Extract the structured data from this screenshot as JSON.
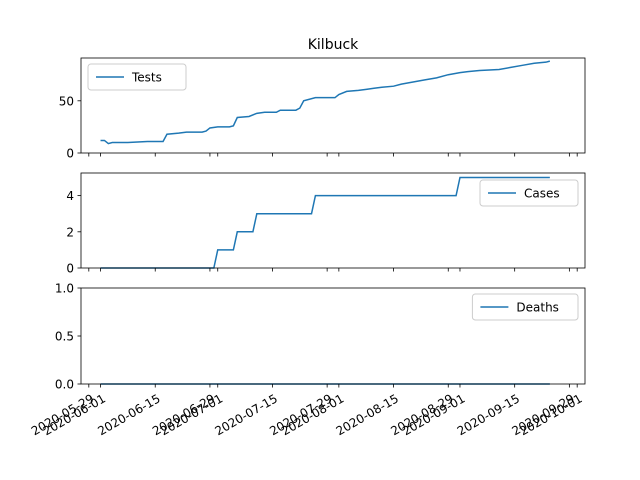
{
  "chart_data": [
    {
      "type": "line",
      "title": "Kilbuck",
      "x": [
        "2020-06-01",
        "2020-06-02",
        "2020-06-03",
        "2020-06-04",
        "2020-06-08",
        "2020-06-13",
        "2020-06-17",
        "2020-06-18",
        "2020-06-21",
        "2020-06-23",
        "2020-06-27",
        "2020-06-28",
        "2020-06-29",
        "2020-07-01",
        "2020-07-04",
        "2020-07-05",
        "2020-07-06",
        "2020-07-09",
        "2020-07-11",
        "2020-07-13",
        "2020-07-16",
        "2020-07-17",
        "2020-07-21",
        "2020-07-22",
        "2020-07-23",
        "2020-07-26",
        "2020-07-31",
        "2020-08-01",
        "2020-08-03",
        "2020-08-06",
        "2020-08-08",
        "2020-08-10",
        "2020-08-12",
        "2020-08-15",
        "2020-08-17",
        "2020-08-20",
        "2020-08-23",
        "2020-08-26",
        "2020-08-29",
        "2020-09-01",
        "2020-09-03",
        "2020-09-06",
        "2020-09-11",
        "2020-09-14",
        "2020-09-17",
        "2020-09-20",
        "2020-09-23",
        "2020-09-24"
      ],
      "series": [
        {
          "name": "Tests",
          "color": "#1f77b4",
          "values": [
            12,
            12,
            9,
            10,
            10,
            11,
            11,
            18,
            19,
            20,
            20,
            21,
            24,
            25,
            25,
            26,
            34,
            35,
            38,
            39,
            39,
            41,
            41,
            43,
            50,
            53,
            53,
            56,
            59,
            60,
            61,
            62,
            63,
            64,
            66,
            68,
            70,
            72,
            75,
            77,
            78,
            79,
            80,
            82,
            84,
            86,
            87,
            88
          ]
        }
      ],
      "ylim": [
        0,
        91
      ],
      "yticks": [
        0,
        50
      ],
      "legend": "upper left"
    },
    {
      "type": "line",
      "x": [
        "2020-06-01",
        "2020-06-30",
        "2020-07-01",
        "2020-07-05",
        "2020-07-06",
        "2020-07-10",
        "2020-07-11",
        "2020-07-25",
        "2020-07-26",
        "2020-08-31",
        "2020-09-01",
        "2020-09-24"
      ],
      "series": [
        {
          "name": "Cases",
          "color": "#1f77b4",
          "values": [
            0,
            0,
            1,
            1,
            2,
            2,
            3,
            3,
            4,
            4,
            5,
            5
          ]
        }
      ],
      "ylim": [
        0,
        5.25
      ],
      "yticks": [
        0,
        2,
        4
      ],
      "legend": "upper right"
    },
    {
      "type": "line",
      "x": [
        "2020-06-01",
        "2020-09-24"
      ],
      "series": [
        {
          "name": "Deaths",
          "color": "#1f77b4",
          "values": [
            0,
            0
          ]
        }
      ],
      "ylim": [
        0,
        1
      ],
      "yticks": [
        {
          "value": 0,
          "label": "0.0"
        },
        {
          "value": 0.5,
          "label": "0.5"
        },
        {
          "value": 1,
          "label": "1.0"
        }
      ],
      "legend": "upper right",
      "xlim": [
        "2020-05-27",
        "2020-10-03"
      ],
      "xticks": [
        "2020-05-29",
        "2020-06-01",
        "2020-06-15",
        "2020-06-29",
        "2020-07-01",
        "2020-07-15",
        "2020-07-29",
        "2020-08-01",
        "2020-08-15",
        "2020-08-29",
        "2020-09-01",
        "2020-09-15",
        "2020-09-29",
        "2020-10-01"
      ]
    }
  ]
}
